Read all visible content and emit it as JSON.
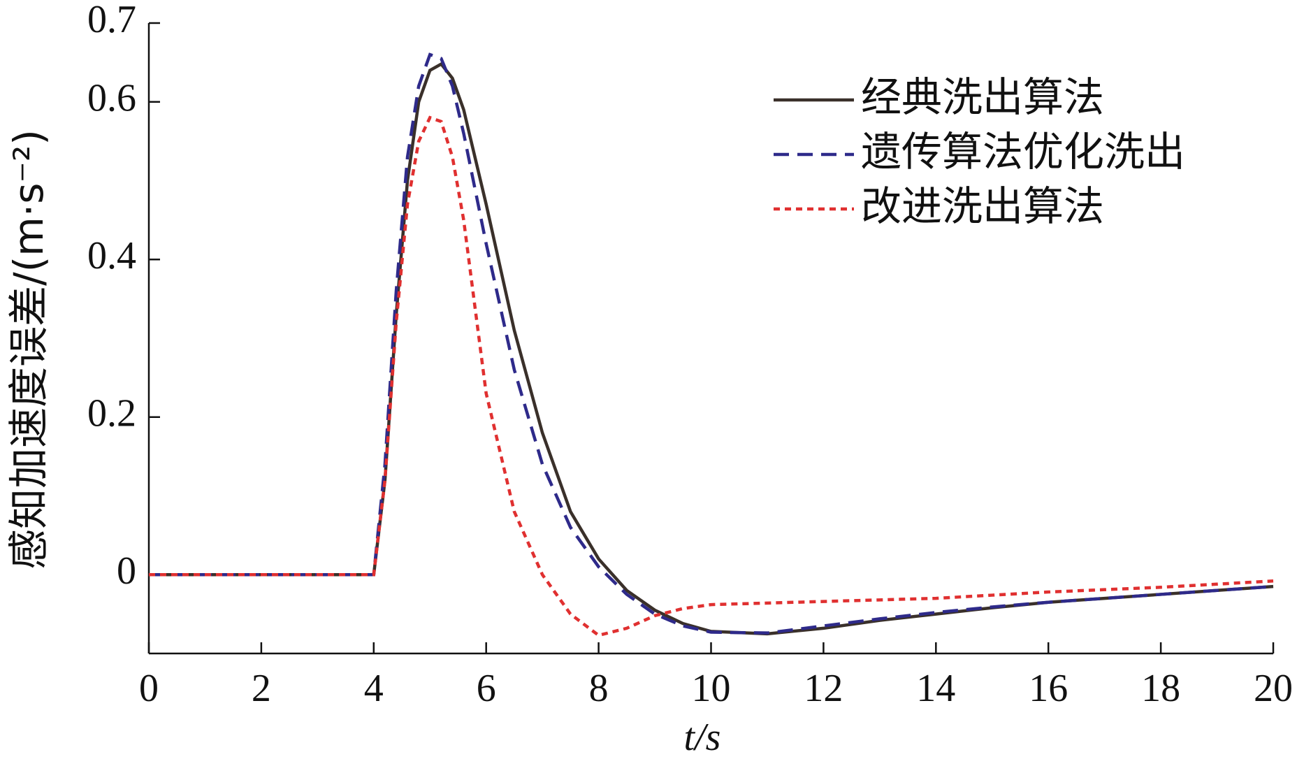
{
  "chart_data": {
    "type": "line",
    "xlabel": "t/s",
    "ylabel": "感知加速度误差/(m·s⁻²)",
    "x": [
      0,
      1,
      2,
      3,
      4,
      4.2,
      4.4,
      4.6,
      4.8,
      5,
      5.2,
      5.4,
      5.6,
      5.8,
      6,
      6.5,
      7,
      7.5,
      8,
      8.5,
      9,
      9.5,
      10,
      11,
      12,
      13,
      14,
      15,
      16,
      17,
      18,
      19,
      20
    ],
    "series": [
      {
        "name": "经典洗出算法",
        "color": "#3a302a",
        "style": "solid",
        "values": [
          0,
          0,
          0,
          0,
          0,
          0.12,
          0.33,
          0.5,
          0.6,
          0.64,
          0.648,
          0.63,
          0.59,
          0.53,
          0.47,
          0.31,
          0.18,
          0.08,
          0.02,
          -0.02,
          -0.045,
          -0.062,
          -0.072,
          -0.075,
          -0.068,
          -0.058,
          -0.05,
          -0.042,
          -0.035,
          -0.03,
          -0.025,
          -0.02,
          -0.015
        ]
      },
      {
        "name": "遗传算法优化洗出",
        "color": "#2e2a8a",
        "style": "dashed",
        "values": [
          0,
          0,
          0,
          0,
          0,
          0.14,
          0.36,
          0.53,
          0.62,
          0.66,
          0.655,
          0.62,
          0.56,
          0.49,
          0.42,
          0.26,
          0.14,
          0.06,
          0.01,
          -0.025,
          -0.05,
          -0.065,
          -0.073,
          -0.074,
          -0.065,
          -0.056,
          -0.048,
          -0.041,
          -0.035,
          -0.03,
          -0.025,
          -0.02,
          -0.015
        ]
      },
      {
        "name": "改进洗出算法",
        "color": "#e03030",
        "style": "dotted",
        "values": [
          0,
          0,
          0,
          0,
          0,
          0.12,
          0.32,
          0.47,
          0.55,
          0.58,
          0.575,
          0.53,
          0.45,
          0.34,
          0.23,
          0.08,
          0.0,
          -0.05,
          -0.077,
          -0.068,
          -0.052,
          -0.043,
          -0.038,
          -0.036,
          -0.034,
          -0.032,
          -0.03,
          -0.026,
          -0.022,
          -0.019,
          -0.016,
          -0.012,
          -0.008
        ]
      }
    ],
    "xlim": [
      0,
      20
    ],
    "xticks": [
      0,
      2,
      4,
      6,
      8,
      10,
      12,
      14,
      16,
      18,
      20
    ],
    "ylim": [
      -0.1,
      0.7
    ],
    "yticks": [
      0,
      0.2,
      0.4,
      0.6,
      0.7
    ],
    "grid": false,
    "legend": "upper right"
  }
}
